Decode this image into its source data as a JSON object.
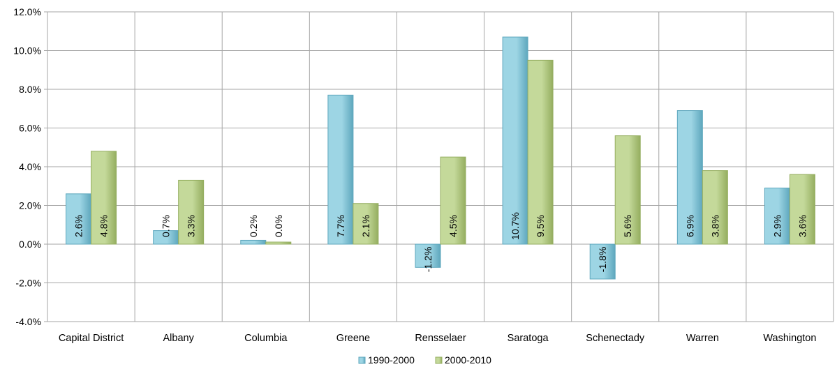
{
  "chart_data": {
    "type": "bar",
    "title": "",
    "xlabel": "",
    "ylabel": "",
    "categories": [
      "Capital District",
      "Albany",
      "Columbia",
      "Greene",
      "Rensselaer",
      "Saratoga",
      "Schenectady",
      "Warren",
      "Washington"
    ],
    "series": [
      {
        "name": "1990-2000",
        "values": [
          2.6,
          0.7,
          0.2,
          7.7,
          -1.2,
          10.7,
          -1.8,
          6.9,
          2.9
        ],
        "labels": [
          "2.6%",
          "0.7%",
          "0.2%",
          "7.7%",
          "-1.2%",
          "10.7%",
          "-1.8%",
          "6.9%",
          "2.9%"
        ],
        "color": "#9DD5E4"
      },
      {
        "name": "2000-2010",
        "values": [
          4.8,
          3.3,
          0.0,
          2.1,
          4.5,
          9.5,
          5.6,
          3.8,
          3.6
        ],
        "labels": [
          "4.8%",
          "3.3%",
          "0.0%",
          "2.1%",
          "4.5%",
          "9.5%",
          "5.6%",
          "3.8%",
          "3.6%"
        ],
        "color": "#C4D99A"
      }
    ],
    "ylim": [
      -4,
      12
    ],
    "yticks": [
      -4,
      -2,
      0,
      2,
      4,
      6,
      8,
      10,
      12
    ],
    "ytick_labels": [
      "-4.0%",
      "-2.0%",
      "0.0%",
      "2.0%",
      "4.0%",
      "6.0%",
      "8.0%",
      "10.0%",
      "12.0%"
    ],
    "grid": true,
    "legend_position": "bottom",
    "colors": {
      "grid": "#A6A6A6",
      "text": "#000000",
      "series1_edge": "#5EA7BD",
      "series2_edge": "#95AE60"
    }
  }
}
